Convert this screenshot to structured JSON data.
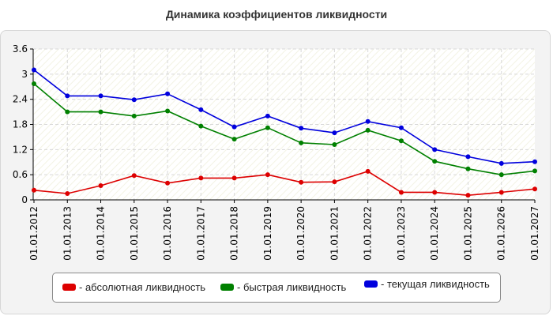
{
  "chart_data": {
    "type": "line",
    "title": "Динамика коэффициентов ликвидности",
    "x": [
      "01.01.2012",
      "01.01.2013",
      "01.01.2014",
      "01.01.2015",
      "01.01.2016",
      "01.01.2017",
      "01.01.2018",
      "01.01.2019",
      "01.01.2020",
      "01.01.2021",
      "01.01.2022",
      "01.01.2023",
      "01.01.2024",
      "01.01.2025",
      "01.01.2026",
      "01.01.2027"
    ],
    "ylim": [
      0,
      3.6
    ],
    "yticks": [
      "0",
      "0.6",
      "1.2",
      "1.8",
      "2.4",
      "3",
      "3.6"
    ],
    "grid": true,
    "legend_position": "bottom",
    "series": [
      {
        "name": "- абсолютная ликвидность",
        "color": "#dd0000",
        "values": [
          0.23,
          0.15,
          0.34,
          0.58,
          0.4,
          0.52,
          0.52,
          0.6,
          0.42,
          0.43,
          0.68,
          0.18,
          0.18,
          0.11,
          0.18,
          0.26
        ]
      },
      {
        "name": "- быстрая ликвидность",
        "color": "#008000",
        "values": [
          2.77,
          2.1,
          2.1,
          2.0,
          2.12,
          1.76,
          1.45,
          1.72,
          1.36,
          1.32,
          1.66,
          1.41,
          0.92,
          0.74,
          0.6,
          0.69
        ]
      },
      {
        "name": "- текущая ликвидность",
        "color": "#0000dd",
        "values": [
          3.1,
          2.48,
          2.48,
          2.39,
          2.53,
          2.15,
          1.74,
          2.0,
          1.71,
          1.6,
          1.87,
          1.72,
          1.2,
          1.03,
          0.87,
          0.91
        ]
      }
    ]
  }
}
